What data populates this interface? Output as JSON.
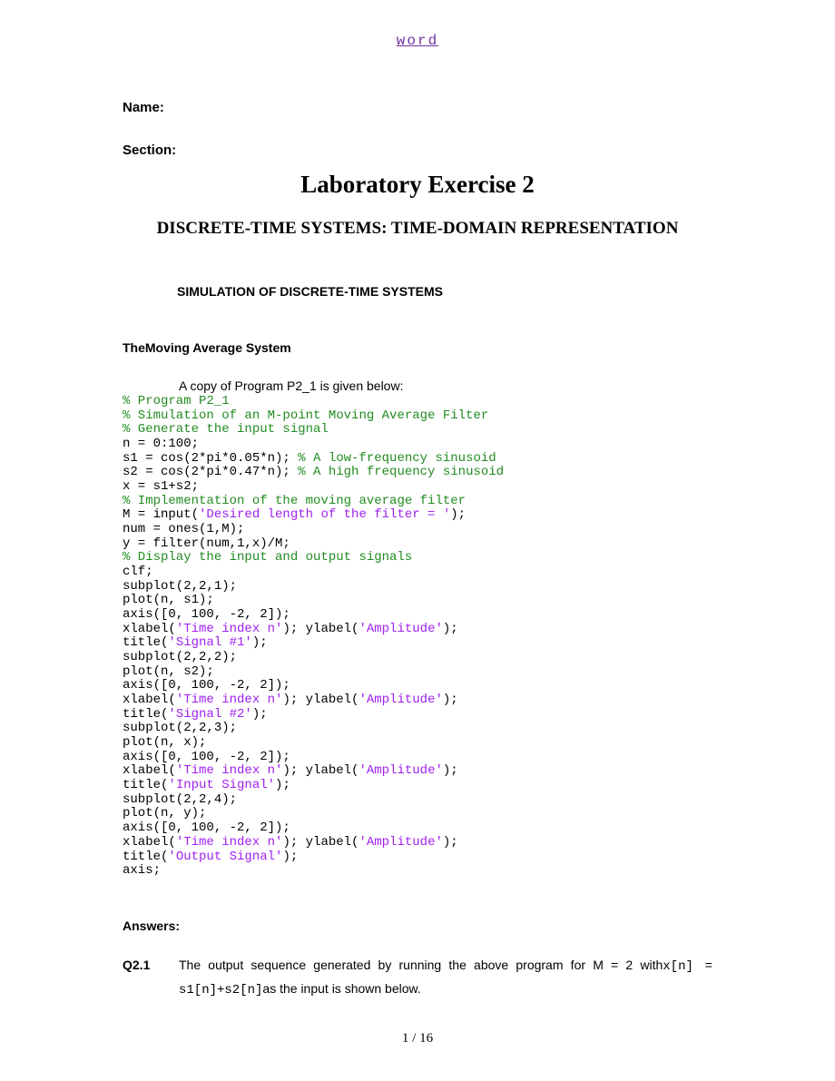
{
  "header_link": "word",
  "name_label": "Name:",
  "section_label": "Section:",
  "title": "Laboratory Exercise 2",
  "subtitle": "DISCRETE-TIME SYSTEMS: TIME-DOMAIN REPRESENTATION",
  "section_header": "SIMULATION OF DISCRETE-TIME SYSTEMS",
  "subsection": "TheMoving Average System",
  "copy_line": "A copy of Program P2_1 is given below:",
  "code": [
    {
      "t": "comment",
      "v": "% Program P2_1"
    },
    {
      "t": "comment",
      "v": "% Simulation of an M-point Moving Average Filter"
    },
    {
      "t": "comment",
      "v": "% Generate the input signal"
    },
    {
      "t": "plain",
      "v": "n = 0:100;"
    },
    {
      "t": "mixed",
      "parts": [
        {
          "t": "plain",
          "v": "s1 = cos(2*pi*0.05*n); "
        },
        {
          "t": "comment",
          "v": "% A low-frequency sinusoid"
        }
      ]
    },
    {
      "t": "mixed",
      "parts": [
        {
          "t": "plain",
          "v": "s2 = cos(2*pi*0.47*n); "
        },
        {
          "t": "comment",
          "v": "% A high frequency sinusoid"
        }
      ]
    },
    {
      "t": "plain",
      "v": "x = s1+s2;"
    },
    {
      "t": "comment",
      "v": "% Implementation of the moving average filter"
    },
    {
      "t": "mixed",
      "parts": [
        {
          "t": "plain",
          "v": "M = input("
        },
        {
          "t": "string",
          "v": "'Desired length of the filter = '"
        },
        {
          "t": "plain",
          "v": ");"
        }
      ]
    },
    {
      "t": "plain",
      "v": "num = ones(1,M);"
    },
    {
      "t": "plain",
      "v": "y = filter(num,1,x)/M;"
    },
    {
      "t": "comment",
      "v": "% Display the input and output signals"
    },
    {
      "t": "plain",
      "v": "clf;"
    },
    {
      "t": "plain",
      "v": "subplot(2,2,1);"
    },
    {
      "t": "plain",
      "v": "plot(n, s1);"
    },
    {
      "t": "plain",
      "v": "axis([0, 100, -2, 2]);"
    },
    {
      "t": "mixed",
      "parts": [
        {
          "t": "plain",
          "v": "xlabel("
        },
        {
          "t": "string",
          "v": "'Time index n'"
        },
        {
          "t": "plain",
          "v": "); ylabel("
        },
        {
          "t": "string",
          "v": "'Amplitude'"
        },
        {
          "t": "plain",
          "v": ");"
        }
      ]
    },
    {
      "t": "mixed",
      "parts": [
        {
          "t": "plain",
          "v": "title("
        },
        {
          "t": "string",
          "v": "'Signal #1'"
        },
        {
          "t": "plain",
          "v": ");"
        }
      ]
    },
    {
      "t": "plain",
      "v": "subplot(2,2,2);"
    },
    {
      "t": "plain",
      "v": "plot(n, s2);"
    },
    {
      "t": "plain",
      "v": "axis([0, 100, -2, 2]);"
    },
    {
      "t": "mixed",
      "parts": [
        {
          "t": "plain",
          "v": "xlabel("
        },
        {
          "t": "string",
          "v": "'Time index n'"
        },
        {
          "t": "plain",
          "v": "); ylabel("
        },
        {
          "t": "string",
          "v": "'Amplitude'"
        },
        {
          "t": "plain",
          "v": ");"
        }
      ]
    },
    {
      "t": "mixed",
      "parts": [
        {
          "t": "plain",
          "v": "title("
        },
        {
          "t": "string",
          "v": "'Signal #2'"
        },
        {
          "t": "plain",
          "v": ");"
        }
      ]
    },
    {
      "t": "plain",
      "v": "subplot(2,2,3);"
    },
    {
      "t": "plain",
      "v": "plot(n, x);"
    },
    {
      "t": "plain",
      "v": "axis([0, 100, -2, 2]);"
    },
    {
      "t": "mixed",
      "parts": [
        {
          "t": "plain",
          "v": "xlabel("
        },
        {
          "t": "string",
          "v": "'Time index n'"
        },
        {
          "t": "plain",
          "v": "); ylabel("
        },
        {
          "t": "string",
          "v": "'Amplitude'"
        },
        {
          "t": "plain",
          "v": ");"
        }
      ]
    },
    {
      "t": "mixed",
      "parts": [
        {
          "t": "plain",
          "v": "title("
        },
        {
          "t": "string",
          "v": "'Input Signal'"
        },
        {
          "t": "plain",
          "v": ");"
        }
      ]
    },
    {
      "t": "plain",
      "v": "subplot(2,2,4);"
    },
    {
      "t": "plain",
      "v": "plot(n, y);"
    },
    {
      "t": "plain",
      "v": "axis([0, 100, -2, 2]);"
    },
    {
      "t": "mixed",
      "parts": [
        {
          "t": "plain",
          "v": "xlabel("
        },
        {
          "t": "string",
          "v": "'Time index n'"
        },
        {
          "t": "plain",
          "v": "); ylabel("
        },
        {
          "t": "string",
          "v": "'Amplitude'"
        },
        {
          "t": "plain",
          "v": ");"
        }
      ]
    },
    {
      "t": "mixed",
      "parts": [
        {
          "t": "plain",
          "v": "title("
        },
        {
          "t": "string",
          "v": "'Output Signal'"
        },
        {
          "t": "plain",
          "v": ");"
        }
      ]
    },
    {
      "t": "plain",
      "v": "axis;"
    }
  ],
  "answers_label": "Answers:",
  "q_num": "Q2.1",
  "q_text_1": "The output sequence generated by running the above program for M = 2 with",
  "q_mono_1": "x[n] = s1[n]+s2[n]",
  "q_text_2": "as the input is shown below.",
  "footer": "1 / 16",
  "colors": {
    "link": "#7030a0",
    "comment": "#228b22",
    "string": "#a020f0",
    "text": "#000000",
    "bg": "#ffffff"
  }
}
